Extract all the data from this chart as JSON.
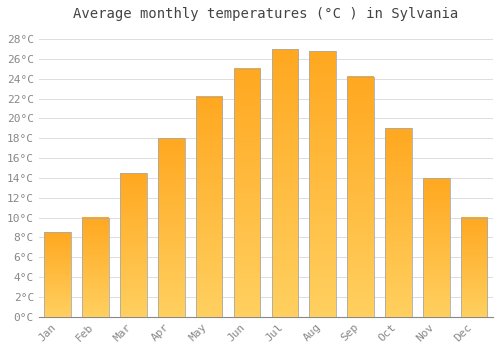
{
  "title": "Average monthly temperatures (°C ) in Sylvania",
  "months": [
    "Jan",
    "Feb",
    "Mar",
    "Apr",
    "May",
    "Jun",
    "Jul",
    "Aug",
    "Sep",
    "Oct",
    "Nov",
    "Dec"
  ],
  "values": [
    8.5,
    10.0,
    14.5,
    18.0,
    22.2,
    25.0,
    27.0,
    26.8,
    24.2,
    19.0,
    14.0,
    10.0
  ],
  "bar_color_face": "#FFA500",
  "bar_color_light": "#FFD060",
  "bar_edge_color": "#AAAAAA",
  "background_color": "#FFFFFF",
  "plot_bg_color": "#FFFFFF",
  "grid_color": "#DDDDDD",
  "title_color": "#444444",
  "tick_color": "#888888",
  "ylim": [
    0,
    29
  ],
  "ytick_step": 2,
  "title_fontsize": 10,
  "tick_fontsize": 8,
  "bar_width": 0.7
}
